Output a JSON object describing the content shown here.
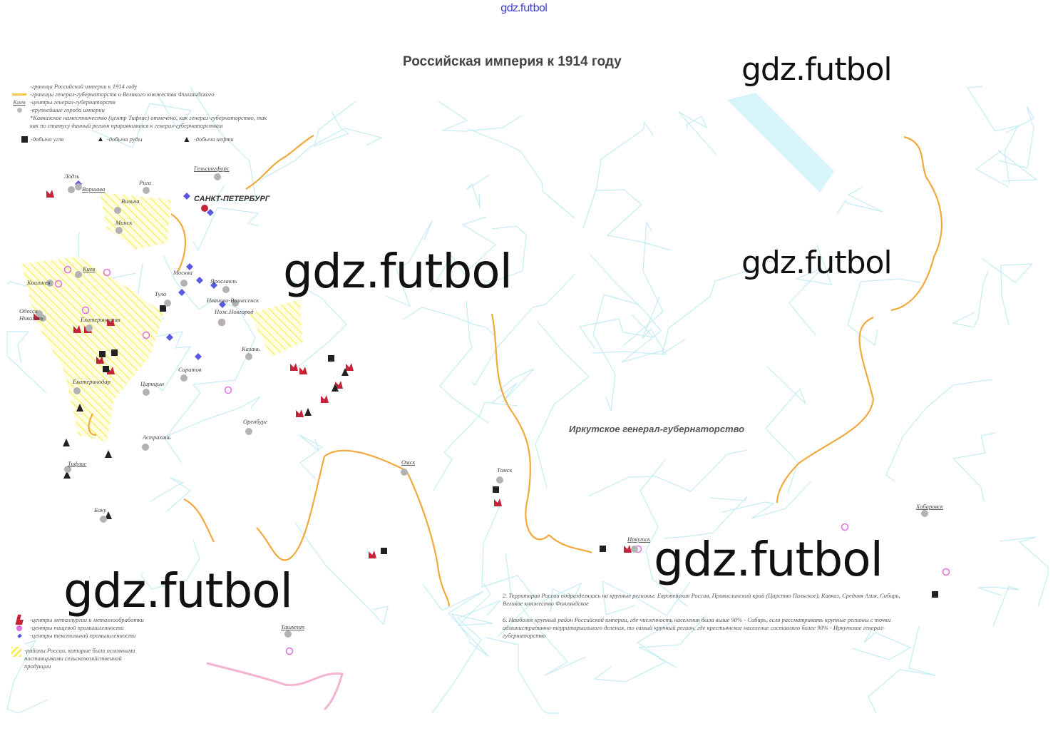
{
  "watermark_top": "gdz.futbol",
  "watermarks": [
    "gdz.futbol",
    "gdz.futbol",
    "gdz.futbol",
    "gdz.futbol",
    "gdz.futbol"
  ],
  "title": "Российская империя к 1914 году",
  "legend_top": {
    "items": [
      "-граница Российской империи к 1914 году",
      "-границы генерал-губернаторств и Великого княжества Финляндского",
      "-центры генерал-губернаторств",
      "-крупнейшие города империи",
      "*Кавказское наместничество (центр Тифлис) отмечено, как генерал-губернаторство, так как по статусу данный регион приравнивался к генерал-губернаторствам"
    ],
    "center_sample": "Киев",
    "resources": [
      "-добыча угля",
      "-добыча руды",
      "-добыча нефти"
    ]
  },
  "legend_bottom": {
    "items": [
      "-центры металлургии и металлообработки",
      "-центры пищевой промышленности",
      "-центры текстильной промышленности",
      "-районы России, которые были основными поставщиками сельскохозяйственной продукции"
    ]
  },
  "notes": [
    "2. Территория России подразделялась на крупные регионы: Европейская Россия, Привислинский край (Царство Польское), Кавказ, Средняя Азия, Сибирь, Великое княжество Финляндское",
    "6. Наиболее крупный район Российской империи, где численность населения была выше 90% - Сибирь, если рассматривать крупные регионы с точки административно-территориального деления, то самый крупный регион, где крестьянское население составляло более 90% - Иркутское генерал-губернаторство"
  ],
  "region_label": "Иркутское генерал-губернаторство",
  "cities": [
    "Лодзь",
    "Варшава",
    "Рига",
    "Вильна",
    "Минск",
    "Гельсингфорс",
    "САНКТ-ПЕТЕРБУРГ",
    "Москва",
    "Ярославль",
    "Тула",
    "Иваново-Вознесенск",
    "Нож.Новгород",
    "Киев",
    "Кишинев",
    "Одесса",
    "Николаев",
    "Екатеринослав",
    "Казань",
    "Саратов",
    "Екатеринодар",
    "Царицын",
    "Оренбург",
    "Астрахань",
    "Тифлис",
    "Баку",
    "Омск",
    "Томск",
    "Иркутск",
    "Хабаровск",
    "Ташкент"
  ],
  "colors": {
    "border": "#f2a93b",
    "rivers": "#bfeaf5",
    "agri_hatch": "#f7ef5a",
    "metallurgy": "#c4243a",
    "food": "#e070e0",
    "textile": "#5a5ae0",
    "city": "#a9a9a9",
    "south_border": "#f5a0c8"
  }
}
